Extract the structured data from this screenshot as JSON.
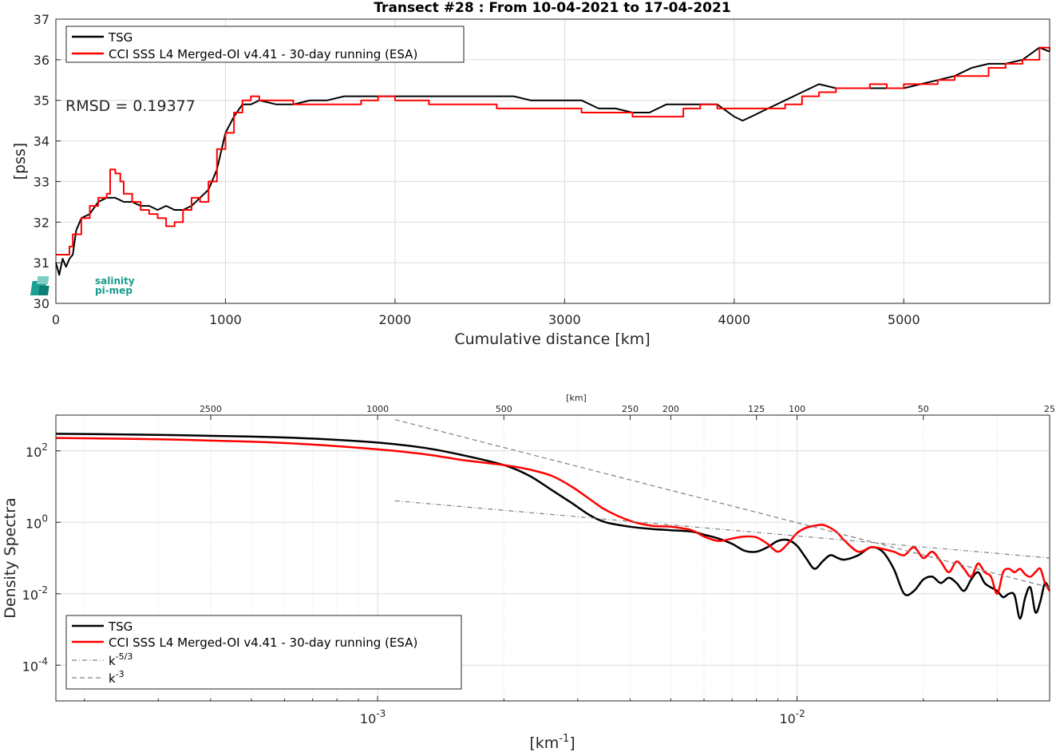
{
  "chart_data": [
    {
      "type": "line",
      "title": "Transect #28 : From 10-04-2021 to 17-04-2021",
      "xlabel": "Cumulative distance [km]",
      "ylabel": "[pss]",
      "xlim": [
        0,
        5860
      ],
      "ylim": [
        30,
        37
      ],
      "xticks": [
        "0",
        "1000",
        "2000",
        "3000",
        "4000",
        "5000"
      ],
      "yticks": [
        "30",
        "31",
        "32",
        "33",
        "34",
        "35",
        "36",
        "37"
      ],
      "grid": true,
      "legend_position": "top-left",
      "annotation": "RMSD = 0.19377",
      "logo": {
        "line1": "salinity",
        "line2": "pi-mep"
      },
      "series": [
        {
          "name": "TSG",
          "color": "#000000",
          "x": [
            0,
            20,
            40,
            60,
            80,
            100,
            120,
            150,
            200,
            250,
            300,
            350,
            400,
            450,
            500,
            550,
            600,
            650,
            700,
            750,
            800,
            850,
            900,
            950,
            1000,
            1050,
            1100,
            1150,
            1200,
            1300,
            1400,
            1500,
            1600,
            1700,
            1800,
            1900,
            2000,
            2100,
            2200,
            2300,
            2400,
            2500,
            2600,
            2700,
            2800,
            2900,
            3000,
            3100,
            3200,
            3300,
            3400,
            3500,
            3600,
            3700,
            3800,
            3900,
            4000,
            4050,
            4100,
            4200,
            4300,
            4400,
            4500,
            4600,
            4700,
            4800,
            4900,
            5000,
            5100,
            5200,
            5300,
            5400,
            5500,
            5600,
            5700,
            5800,
            5860
          ],
          "y": [
            31.0,
            30.7,
            31.1,
            30.9,
            31.1,
            31.2,
            31.8,
            32.1,
            32.2,
            32.5,
            32.6,
            32.6,
            32.5,
            32.5,
            32.4,
            32.4,
            32.3,
            32.4,
            32.3,
            32.3,
            32.4,
            32.6,
            32.8,
            33.3,
            34.2,
            34.6,
            34.9,
            34.9,
            35.0,
            34.9,
            34.9,
            35.0,
            35.0,
            35.1,
            35.1,
            35.1,
            35.1,
            35.1,
            35.1,
            35.1,
            35.1,
            35.1,
            35.1,
            35.1,
            35.0,
            35.0,
            35.0,
            35.0,
            34.8,
            34.8,
            34.7,
            34.7,
            34.9,
            34.9,
            34.9,
            34.9,
            34.6,
            34.5,
            34.6,
            34.8,
            35.0,
            35.2,
            35.4,
            35.3,
            35.3,
            35.3,
            35.3,
            35.3,
            35.4,
            35.5,
            35.6,
            35.8,
            35.9,
            35.9,
            36.0,
            36.3,
            36.2
          ]
        },
        {
          "name": "CCI SSS L4 Merged-OI v4.41 - 30-day running (ESA)",
          "color": "#ff0000",
          "x": [
            0,
            40,
            80,
            100,
            150,
            200,
            250,
            300,
            320,
            350,
            380,
            400,
            450,
            500,
            550,
            600,
            650,
            700,
            750,
            800,
            850,
            900,
            950,
            1000,
            1050,
            1100,
            1150,
            1200,
            1300,
            1400,
            1500,
            1600,
            1700,
            1800,
            1900,
            2000,
            2100,
            2200,
            2300,
            2400,
            2500,
            2600,
            2700,
            2800,
            2900,
            3000,
            3100,
            3200,
            3300,
            3400,
            3500,
            3600,
            3700,
            3800,
            3900,
            4000,
            4100,
            4200,
            4300,
            4400,
            4500,
            4600,
            4700,
            4800,
            4900,
            5000,
            5100,
            5200,
            5300,
            5400,
            5500,
            5600,
            5700,
            5800,
            5860
          ],
          "y": [
            31.2,
            31.2,
            31.4,
            31.7,
            32.1,
            32.4,
            32.6,
            32.7,
            33.3,
            33.2,
            33.0,
            32.7,
            32.5,
            32.3,
            32.2,
            32.1,
            31.9,
            32.0,
            32.3,
            32.6,
            32.5,
            33.0,
            33.8,
            34.2,
            34.7,
            35.0,
            35.1,
            35.0,
            35.0,
            34.9,
            34.9,
            34.9,
            34.9,
            35.0,
            35.1,
            35.0,
            35.0,
            34.9,
            34.9,
            34.9,
            34.9,
            34.8,
            34.8,
            34.8,
            34.8,
            34.8,
            34.7,
            34.7,
            34.7,
            34.6,
            34.6,
            34.6,
            34.8,
            34.9,
            34.8,
            34.8,
            34.8,
            34.8,
            34.9,
            35.1,
            35.2,
            35.3,
            35.3,
            35.4,
            35.3,
            35.4,
            35.4,
            35.5,
            35.6,
            35.6,
            35.8,
            35.9,
            36.0,
            36.3,
            36.2
          ]
        }
      ]
    },
    {
      "type": "line",
      "xlabel": "[km-1]",
      "ylabel": "Density Spectra",
      "xscale": "log",
      "yscale": "log",
      "xlim": [
        0.000171,
        0.04
      ],
      "ylim": [
        1e-05,
        1000
      ],
      "xticks": [
        {
          "v": 0.001,
          "base": "10",
          "exp": "-3"
        },
        {
          "v": 0.01,
          "base": "10",
          "exp": "-2"
        }
      ],
      "yticks": [
        {
          "v": 0.0001,
          "base": "10",
          "exp": "-4"
        },
        {
          "v": 0.01,
          "base": "10",
          "exp": "-2"
        },
        {
          "v": 1,
          "base": "10",
          "exp": "0"
        },
        {
          "v": 100,
          "base": "10",
          "exp": "2"
        }
      ],
      "top_axis_label": "[km]",
      "top_ticks": [
        "2500",
        "1000",
        "500",
        "250",
        "200",
        "125",
        "100",
        "50",
        "25"
      ],
      "grid": true,
      "legend_position": "bottom-left",
      "series": [
        {
          "name": "TSG",
          "color": "#000000",
          "x": [
            0.000171,
            0.0003,
            0.0005,
            0.0007,
            0.001,
            0.0013,
            0.0016,
            0.002,
            0.0023,
            0.0026,
            0.0029,
            0.0032,
            0.0035,
            0.004,
            0.0045,
            0.005,
            0.0056,
            0.006,
            0.0065,
            0.007,
            0.0075,
            0.008,
            0.0085,
            0.009,
            0.0095,
            0.01,
            0.0105,
            0.011,
            0.0115,
            0.012,
            0.0125,
            0.013,
            0.014,
            0.015,
            0.016,
            0.017,
            0.018,
            0.019,
            0.02,
            0.021,
            0.022,
            0.023,
            0.024,
            0.025,
            0.026,
            0.027,
            0.028,
            0.029,
            0.03,
            0.031,
            0.032,
            0.033,
            0.034,
            0.035,
            0.036,
            0.037,
            0.038,
            0.039,
            0.04
          ],
          "y": [
            300,
            280,
            250,
            220,
            170,
            120,
            75,
            40,
            20,
            8,
            3.5,
            1.6,
            1.0,
            0.75,
            0.65,
            0.6,
            0.55,
            0.45,
            0.35,
            0.25,
            0.16,
            0.15,
            0.2,
            0.3,
            0.32,
            0.22,
            0.1,
            0.05,
            0.08,
            0.12,
            0.1,
            0.09,
            0.12,
            0.2,
            0.15,
            0.05,
            0.01,
            0.012,
            0.025,
            0.03,
            0.02,
            0.028,
            0.02,
            0.012,
            0.025,
            0.04,
            0.02,
            0.015,
            0.012,
            0.008,
            0.01,
            0.009,
            0.002,
            0.008,
            0.015,
            0.003,
            0.006,
            0.02,
            0.012
          ]
        },
        {
          "name": "CCI SSS L4 Merged-OI v4.41 - 30-day running (ESA)",
          "color": "#ff0000",
          "x": [
            0.000171,
            0.0003,
            0.0005,
            0.0007,
            0.001,
            0.0013,
            0.0016,
            0.002,
            0.0023,
            0.0026,
            0.0029,
            0.0032,
            0.0035,
            0.004,
            0.0045,
            0.005,
            0.0056,
            0.006,
            0.0065,
            0.007,
            0.0075,
            0.008,
            0.0085,
            0.009,
            0.0095,
            0.01,
            0.0105,
            0.011,
            0.0115,
            0.012,
            0.0125,
            0.013,
            0.014,
            0.015,
            0.016,
            0.017,
            0.018,
            0.019,
            0.02,
            0.021,
            0.022,
            0.023,
            0.024,
            0.025,
            0.026,
            0.027,
            0.028,
            0.029,
            0.03,
            0.031,
            0.032,
            0.033,
            0.034,
            0.035,
            0.036,
            0.037,
            0.038,
            0.039,
            0.04
          ],
          "y": [
            230,
            210,
            180,
            150,
            110,
            80,
            55,
            40,
            30,
            20,
            10,
            4.5,
            2.2,
            1.1,
            0.8,
            0.75,
            0.6,
            0.4,
            0.3,
            0.35,
            0.4,
            0.38,
            0.25,
            0.15,
            0.25,
            0.5,
            0.7,
            0.8,
            0.85,
            0.7,
            0.5,
            0.3,
            0.15,
            0.2,
            0.18,
            0.15,
            0.12,
            0.2,
            0.1,
            0.15,
            0.08,
            0.04,
            0.08,
            0.05,
            0.03,
            0.07,
            0.04,
            0.03,
            0.01,
            0.04,
            0.05,
            0.04,
            0.05,
            0.035,
            0.03,
            0.04,
            0.05,
            0.02,
            0.012
          ]
        },
        {
          "name": "k-5/3",
          "color": "#808080",
          "dash": "dashdot",
          "x": [
            0.0011,
            0.04
          ],
          "y": [
            4.0,
            0.1
          ]
        },
        {
          "name": "k-3",
          "color": "#808080",
          "dash": "dash",
          "x": [
            0.0011,
            0.04
          ],
          "y": [
            750,
            0.015
          ]
        }
      ]
    }
  ]
}
